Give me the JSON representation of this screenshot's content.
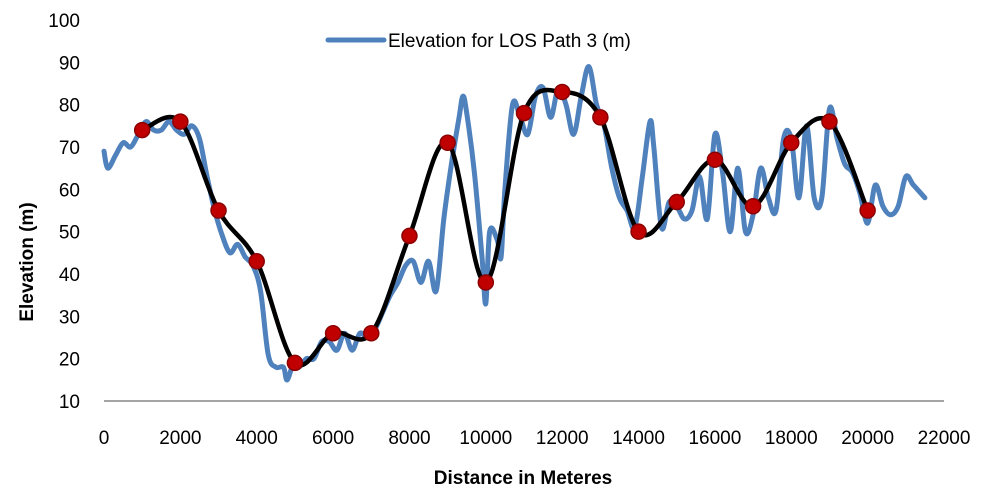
{
  "chart_data": {
    "type": "line",
    "title": "",
    "xlabel": "Distance in Meteres",
    "ylabel": "Elevation (m)",
    "xlim": [
      0,
      22000
    ],
    "ylim": [
      10,
      100
    ],
    "xticks": [
      "0",
      "2000",
      "4000",
      "6000",
      "8000",
      "10000",
      "12000",
      "14000",
      "16000",
      "18000",
      "20000",
      "22000"
    ],
    "yticks": [
      "10",
      "20",
      "30",
      "40",
      "50",
      "60",
      "70",
      "80",
      "90",
      "100"
    ],
    "grid": false,
    "legend": {
      "position": "top-center",
      "entries": [
        "Elevation for LOS  Path 3 (m)"
      ]
    },
    "colors": {
      "elevation": "#4f81bd",
      "fit": "#000000",
      "markers": "#c00000",
      "marker_edge": "#8b0000"
    },
    "series": [
      {
        "name": "Elevation for LOS  Path 3 (m)",
        "x": [
          0,
          100,
          300,
          500,
          700,
          900,
          1100,
          1300,
          1500,
          1700,
          1900,
          2100,
          2300,
          2500,
          2700,
          2900,
          3100,
          3300,
          3500,
          3700,
          3900,
          4100,
          4300,
          4500,
          4700,
          4800,
          5000,
          5100,
          5300,
          5500,
          5700,
          5900,
          6100,
          6300,
          6500,
          6700,
          6900,
          7100,
          7300,
          7500,
          7700,
          7900,
          8100,
          8300,
          8500,
          8700,
          8900,
          9100,
          9300,
          9400,
          9500,
          9700,
          9900,
          10000,
          10100,
          10300,
          10400,
          10500,
          10700,
          10900,
          11100,
          11300,
          11500,
          11700,
          11900,
          12100,
          12300,
          12500,
          12700,
          12900,
          13100,
          13300,
          13500,
          13700,
          13900,
          14100,
          14300,
          14400,
          14600,
          14800,
          15000,
          15200,
          15400,
          15600,
          15800,
          16000,
          16200,
          16400,
          16600,
          16800,
          17000,
          17200,
          17400,
          17600,
          17800,
          18000,
          18200,
          18400,
          18600,
          18800,
          19000,
          19200,
          19400,
          19600,
          19800,
          20000,
          20200,
          20400,
          20600,
          20800,
          21000,
          21200,
          21500
        ],
        "values": [
          69,
          65,
          68,
          71,
          70,
          73,
          76,
          74,
          74,
          76,
          74,
          73,
          75,
          72,
          63,
          55,
          49,
          45,
          47,
          44,
          42,
          36,
          21,
          18,
          18,
          15,
          20,
          18,
          20,
          20,
          24,
          24,
          22,
          26,
          22,
          26,
          25,
          27,
          31,
          35,
          38,
          42,
          43,
          38,
          43,
          36,
          53,
          66,
          77,
          82,
          78,
          64,
          44,
          33,
          50,
          48,
          44,
          60,
          80,
          77,
          73,
          82,
          84,
          77,
          84,
          80,
          73,
          82,
          89,
          80,
          75,
          65,
          58,
          55,
          51,
          63,
          76,
          70,
          51,
          57,
          56,
          53,
          55,
          63,
          53,
          73,
          64,
          50,
          65,
          50,
          54,
          65,
          58,
          55,
          72,
          72,
          58,
          75,
          58,
          58,
          79,
          72,
          66,
          64,
          59,
          52,
          61,
          56,
          54,
          56,
          63,
          61,
          58
        ]
      },
      {
        "name": "",
        "x": [
          1000,
          2000,
          3000,
          4000,
          5000,
          6000,
          7000,
          8000,
          9000,
          10000,
          11000,
          12000,
          13000,
          14000,
          15000,
          16000,
          17000,
          18000,
          19000,
          20000
        ],
        "values": [
          74,
          76,
          55,
          43,
          19,
          26,
          26,
          49,
          71,
          38,
          78,
          83,
          77,
          50,
          57,
          67,
          56,
          71,
          76,
          55
        ]
      }
    ]
  }
}
